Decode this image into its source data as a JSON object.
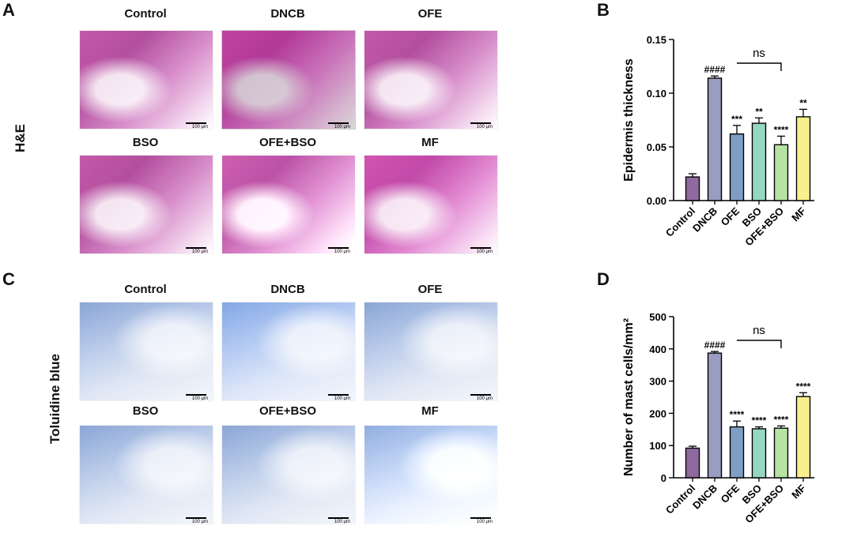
{
  "panels": {
    "A": "A",
    "B": "B",
    "C": "C",
    "D": "D"
  },
  "row_labels": {
    "he": "H&E",
    "tb": "Toluidine blue"
  },
  "image_captions": [
    "Control",
    "DNCB",
    "OFE",
    "BSO",
    "OFE+BSO",
    "MF"
  ],
  "scale_bar_label": "100 μm",
  "colors": {
    "bars": [
      "#8e6a9e",
      "#9a9cc0",
      "#7f9ec4",
      "#94d7c2",
      "#b6e2a4",
      "#f7f08c"
    ],
    "he_stain": "#c45aa9",
    "tb_stain": "#8aa6d6"
  },
  "chart_data": [
    {
      "type": "bar",
      "categories": [
        "Control",
        "DNCB",
        "OFE",
        "BSO",
        "OFE+BSO",
        "MF"
      ],
      "values": [
        0.022,
        0.114,
        0.062,
        0.072,
        0.052,
        0.078
      ],
      "errors": [
        0.003,
        0.002,
        0.008,
        0.005,
        0.008,
        0.007
      ],
      "annotations": [
        "",
        "####",
        "***",
        "**",
        "****",
        "**"
      ],
      "comparison": {
        "from": "OFE",
        "to": "OFE+BSO",
        "label": "ns"
      },
      "ylabel": "Epidermis thickness",
      "ylim": [
        0,
        0.15
      ],
      "yticks": [
        "0.00",
        "0.05",
        "0.10",
        "0.15"
      ]
    },
    {
      "type": "bar",
      "categories": [
        "Control",
        "DNCB",
        "OFE",
        "BSO",
        "OFE+BSO",
        "MF"
      ],
      "values": [
        92,
        387,
        158,
        152,
        154,
        252
      ],
      "errors": [
        6,
        5,
        18,
        6,
        7,
        12
      ],
      "annotations": [
        "",
        "####",
        "****",
        "****",
        "****",
        "****"
      ],
      "comparison": {
        "from": "OFE",
        "to": "OFE+BSO",
        "label": "ns"
      },
      "ylabel": "Number of mast cells/mm²",
      "ylim": [
        0,
        500
      ],
      "yticks": [
        "0",
        "100",
        "200",
        "300",
        "400",
        "500"
      ]
    }
  ]
}
